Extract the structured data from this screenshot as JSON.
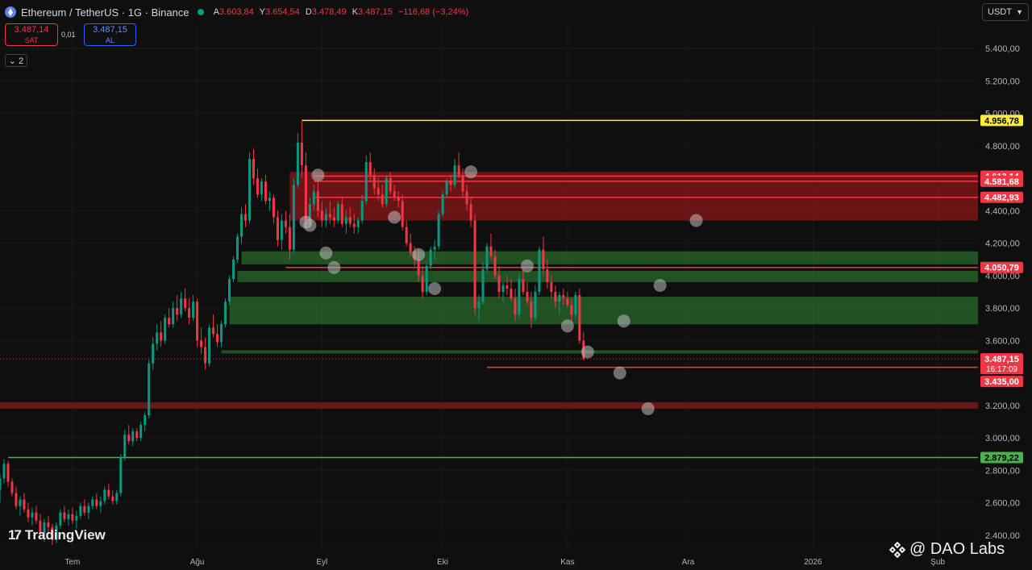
{
  "header": {
    "symbol": "Ethereum / TetherUS · 1G · Binance",
    "ohlc": [
      {
        "key": "A",
        "value": "3.603,84"
      },
      {
        "key": "Y",
        "value": "3.654,54"
      },
      {
        "key": "D",
        "value": "3.478,49"
      },
      {
        "key": "K",
        "value": "3.487,15"
      }
    ],
    "change": "−116,68 (−3,24%)"
  },
  "trade": {
    "sell_price": "3.487,14",
    "sell_label": "SAT",
    "spread": "0,01",
    "buy_price": "3.487,15",
    "buy_label": "AL"
  },
  "indicator_toggle": "2",
  "currency": "USDT",
  "branding": {
    "tradingview": "TradingView",
    "watermark": "@ DAO Labs"
  },
  "colors": {
    "bg": "#0f0f0f",
    "up": "#089981",
    "down": "#f23645",
    "yellow": "#ffeb3b",
    "green_line": "#4caf50",
    "red_zone": "#b71c1c",
    "green_zone": "#2e7d32"
  },
  "chart_data": {
    "type": "candlestick",
    "x_ticks": [
      {
        "label": "Tem",
        "t": 18
      },
      {
        "label": "Ağu",
        "t": 49
      },
      {
        "label": "Eyl",
        "t": 80
      },
      {
        "label": "Eki",
        "t": 110
      },
      {
        "label": "Kas",
        "t": 141
      },
      {
        "label": "Ara",
        "t": 171
      },
      {
        "label": "2026",
        "t": 202
      },
      {
        "label": "Şub",
        "t": 233
      }
    ],
    "y_ticks": [
      {
        "label": "2.400,00",
        "v": 2400
      },
      {
        "label": "2.600,00",
        "v": 2600
      },
      {
        "label": "2.800,00",
        "v": 2800
      },
      {
        "label": "3.000,00",
        "v": 3000
      },
      {
        "label": "3.200,00",
        "v": 3200
      },
      {
        "label": "3.600,00",
        "v": 3600
      },
      {
        "label": "3.800,00",
        "v": 3800
      },
      {
        "label": "4.000,00",
        "v": 4000
      },
      {
        "label": "4.200,00",
        "v": 4200
      },
      {
        "label": "4.400,00",
        "v": 4400
      },
      {
        "label": "4.800,00",
        "v": 4800
      },
      {
        "label": "5.000,00",
        "v": 5000
      },
      {
        "label": "5.200,00",
        "v": 5200
      },
      {
        "label": "5.400,00",
        "v": 5400
      }
    ],
    "ylim": [
      2300,
      5560
    ],
    "xlim": [
      0,
      243
    ],
    "price_levels": [
      {
        "label": "4.956,78",
        "value": 4956.78,
        "color": "#ffeb3b",
        "from_t": 75,
        "text_color": "#000000"
      },
      {
        "label": "4.613,14",
        "value": 4613.14,
        "color": "#f23645",
        "from_t": 78,
        "text_color": "#ffffff"
      },
      {
        "label": "4.581,68",
        "value": 4581.68,
        "color": "#f23645",
        "from_t": 78,
        "text_color": "#ffffff"
      },
      {
        "label": "4.482,93",
        "value": 4482.93,
        "color": "#f23645",
        "from_t": 78,
        "text_color": "#ffffff"
      },
      {
        "label": "4.050,79",
        "value": 4050.79,
        "color": "#f23645",
        "from_t": 71,
        "text_color": "#ffffff"
      },
      {
        "label": "3.435,00",
        "value": 3435.0,
        "color": "#f23645",
        "from_t": 121,
        "text_color": "#ffffff"
      },
      {
        "label": "2.879,22",
        "value": 2879.22,
        "color": "#4caf50",
        "from_t": 2,
        "text_color": "#000000"
      }
    ],
    "last_price": {
      "label": "3.487,15",
      "value": 3487.15,
      "countdown": "16:17:09"
    },
    "zones": [
      {
        "kind": "supply",
        "low": 4340,
        "high": 4640,
        "from_t": 72
      },
      {
        "kind": "support",
        "low": 4070,
        "high": 4150,
        "from_t": 60
      },
      {
        "kind": "support",
        "low": 3960,
        "high": 4030,
        "from_t": 59
      },
      {
        "kind": "support",
        "low": 3700,
        "high": 3870,
        "from_t": 57
      },
      {
        "kind": "support",
        "low": 3520,
        "high": 3540,
        "from_t": 55
      },
      {
        "kind": "supply",
        "low": 3180,
        "high": 3220,
        "from_t": 0
      }
    ],
    "markers": [
      {
        "t": 79,
        "v": 4620
      },
      {
        "t": 76,
        "v": 4330
      },
      {
        "t": 77,
        "v": 4310
      },
      {
        "t": 81,
        "v": 4140
      },
      {
        "t": 83,
        "v": 4050
      },
      {
        "t": 98,
        "v": 4360
      },
      {
        "t": 104,
        "v": 4130
      },
      {
        "t": 108,
        "v": 3920
      },
      {
        "t": 117,
        "v": 4640
      },
      {
        "t": 131,
        "v": 4060
      },
      {
        "t": 141,
        "v": 3690
      },
      {
        "t": 146,
        "v": 3530
      },
      {
        "t": 155,
        "v": 3720
      },
      {
        "t": 164,
        "v": 3940
      },
      {
        "t": 154,
        "v": 3400
      },
      {
        "t": 161,
        "v": 3180
      },
      {
        "t": 173,
        "v": 4340
      }
    ],
    "candles": [
      [
        0,
        2680,
        2780,
        2600,
        2750
      ],
      [
        1,
        2750,
        2870,
        2720,
        2840
      ],
      [
        2,
        2840,
        2860,
        2700,
        2730
      ],
      [
        3,
        2730,
        2750,
        2640,
        2660
      ],
      [
        4,
        2660,
        2700,
        2560,
        2580
      ],
      [
        5,
        2580,
        2640,
        2520,
        2620
      ],
      [
        6,
        2620,
        2660,
        2540,
        2560
      ],
      [
        7,
        2560,
        2600,
        2480,
        2510
      ],
      [
        8,
        2510,
        2570,
        2460,
        2540
      ],
      [
        9,
        2540,
        2580,
        2470,
        2490
      ],
      [
        10,
        2490,
        2530,
        2380,
        2410
      ],
      [
        11,
        2410,
        2500,
        2360,
        2480
      ],
      [
        12,
        2480,
        2520,
        2420,
        2450
      ],
      [
        13,
        2450,
        2470,
        2340,
        2370
      ],
      [
        14,
        2370,
        2480,
        2350,
        2460
      ],
      [
        15,
        2460,
        2560,
        2440,
        2540
      ],
      [
        16,
        2540,
        2580,
        2480,
        2500
      ],
      [
        17,
        2500,
        2560,
        2460,
        2530
      ],
      [
        18,
        2530,
        2570,
        2470,
        2490
      ],
      [
        19,
        2490,
        2550,
        2440,
        2520
      ],
      [
        20,
        2520,
        2600,
        2500,
        2580
      ],
      [
        21,
        2580,
        2620,
        2520,
        2540
      ],
      [
        22,
        2540,
        2600,
        2500,
        2580
      ],
      [
        23,
        2580,
        2640,
        2560,
        2620
      ],
      [
        24,
        2620,
        2660,
        2560,
        2580
      ],
      [
        25,
        2580,
        2640,
        2540,
        2610
      ],
      [
        26,
        2610,
        2700,
        2590,
        2680
      ],
      [
        27,
        2680,
        2720,
        2620,
        2640
      ],
      [
        28,
        2640,
        2680,
        2590,
        2610
      ],
      [
        29,
        2610,
        2680,
        2590,
        2660
      ],
      [
        30,
        2660,
        2900,
        2640,
        2880
      ],
      [
        31,
        2880,
        3050,
        2860,
        3020
      ],
      [
        32,
        3020,
        3080,
        2960,
        2980
      ],
      [
        33,
        2980,
        3060,
        2950,
        3040
      ],
      [
        34,
        3040,
        3060,
        2980,
        3000
      ],
      [
        35,
        3000,
        3100,
        2980,
        3080
      ],
      [
        36,
        3080,
        3160,
        3040,
        3140
      ],
      [
        37,
        3140,
        3480,
        3120,
        3460
      ],
      [
        38,
        3460,
        3620,
        3420,
        3580
      ],
      [
        39,
        3580,
        3700,
        3540,
        3650
      ],
      [
        40,
        3650,
        3720,
        3560,
        3600
      ],
      [
        41,
        3600,
        3760,
        3580,
        3740
      ],
      [
        42,
        3740,
        3800,
        3680,
        3700
      ],
      [
        43,
        3700,
        3840,
        3680,
        3800
      ],
      [
        44,
        3800,
        3880,
        3720,
        3760
      ],
      [
        45,
        3760,
        3900,
        3740,
        3860
      ],
      [
        46,
        3860,
        3920,
        3780,
        3800
      ],
      [
        47,
        3800,
        3860,
        3700,
        3740
      ],
      [
        48,
        3740,
        3880,
        3720,
        3840
      ],
      [
        49,
        3840,
        3860,
        3560,
        3600
      ],
      [
        50,
        3600,
        3680,
        3520,
        3560
      ],
      [
        51,
        3560,
        3620,
        3420,
        3460
      ],
      [
        52,
        3460,
        3700,
        3440,
        3680
      ],
      [
        53,
        3680,
        3760,
        3620,
        3640
      ],
      [
        54,
        3640,
        3700,
        3560,
        3590
      ],
      [
        55,
        3590,
        3720,
        3560,
        3700
      ],
      [
        56,
        3700,
        3860,
        3680,
        3840
      ],
      [
        57,
        3840,
        4000,
        3820,
        3980
      ],
      [
        58,
        3980,
        4120,
        3960,
        4100
      ],
      [
        59,
        4100,
        4260,
        4080,
        4240
      ],
      [
        60,
        4240,
        4420,
        4200,
        4380
      ],
      [
        61,
        4380,
        4440,
        4300,
        4340
      ],
      [
        62,
        4340,
        4760,
        4320,
        4720
      ],
      [
        63,
        4720,
        4780,
        4560,
        4600
      ],
      [
        64,
        4600,
        4660,
        4480,
        4500
      ],
      [
        65,
        4500,
        4600,
        4460,
        4580
      ],
      [
        66,
        4580,
        4620,
        4440,
        4460
      ],
      [
        67,
        4460,
        4520,
        4400,
        4480
      ],
      [
        68,
        4480,
        4500,
        4320,
        4360
      ],
      [
        69,
        4360,
        4400,
        4180,
        4220
      ],
      [
        70,
        4220,
        4380,
        4160,
        4340
      ],
      [
        71,
        4340,
        4400,
        4260,
        4300
      ],
      [
        72,
        4300,
        4380,
        4100,
        4160
      ],
      [
        73,
        4160,
        4600,
        4140,
        4560
      ],
      [
        74,
        4560,
        4880,
        4540,
        4820
      ],
      [
        75,
        4820,
        4950,
        4600,
        4680
      ],
      [
        76,
        4680,
        4760,
        4300,
        4340
      ],
      [
        77,
        4340,
        4480,
        4300,
        4440
      ],
      [
        78,
        4440,
        4560,
        4400,
        4520
      ],
      [
        79,
        4520,
        4580,
        4360,
        4400
      ],
      [
        80,
        4400,
        4460,
        4300,
        4340
      ],
      [
        81,
        4340,
        4420,
        4300,
        4380
      ],
      [
        82,
        4380,
        4460,
        4320,
        4360
      ],
      [
        83,
        4360,
        4420,
        4300,
        4340
      ],
      [
        84,
        4340,
        4460,
        4320,
        4440
      ],
      [
        85,
        4440,
        4480,
        4300,
        4320
      ],
      [
        86,
        4320,
        4400,
        4260,
        4360
      ],
      [
        87,
        4360,
        4420,
        4300,
        4320
      ],
      [
        88,
        4320,
        4380,
        4260,
        4300
      ],
      [
        89,
        4300,
        4360,
        4260,
        4340
      ],
      [
        90,
        4340,
        4500,
        4320,
        4460
      ],
      [
        91,
        4460,
        4740,
        4440,
        4700
      ],
      [
        92,
        4700,
        4760,
        4580,
        4620
      ],
      [
        93,
        4620,
        4660,
        4500,
        4540
      ],
      [
        94,
        4540,
        4600,
        4460,
        4500
      ],
      [
        95,
        4500,
        4560,
        4420,
        4440
      ],
      [
        96,
        4440,
        4620,
        4420,
        4600
      ],
      [
        97,
        4600,
        4640,
        4500,
        4520
      ],
      [
        98,
        4520,
        4560,
        4460,
        4480
      ],
      [
        99,
        4480,
        4520,
        4420,
        4460
      ],
      [
        100,
        4460,
        4500,
        4280,
        4300
      ],
      [
        101,
        4300,
        4340,
        4180,
        4200
      ],
      [
        102,
        4200,
        4260,
        4120,
        4140
      ],
      [
        103,
        4140,
        4180,
        4060,
        4100
      ],
      [
        104,
        4100,
        4160,
        3960,
        4000
      ],
      [
        105,
        4000,
        4060,
        3860,
        3900
      ],
      [
        106,
        3900,
        4080,
        3880,
        4060
      ],
      [
        107,
        4060,
        4180,
        4040,
        4160
      ],
      [
        108,
        4160,
        4220,
        4100,
        4180
      ],
      [
        109,
        4180,
        4400,
        4160,
        4380
      ],
      [
        110,
        4380,
        4520,
        4360,
        4500
      ],
      [
        111,
        4500,
        4600,
        4480,
        4580
      ],
      [
        112,
        4580,
        4620,
        4520,
        4560
      ],
      [
        113,
        4560,
        4720,
        4540,
        4680
      ],
      [
        114,
        4680,
        4760,
        4600,
        4620
      ],
      [
        115,
        4620,
        4660,
        4480,
        4520
      ],
      [
        116,
        4520,
        4560,
        4400,
        4440
      ],
      [
        117,
        4440,
        4480,
        4300,
        4340
      ],
      [
        118,
        4340,
        4380,
        3760,
        3800
      ],
      [
        119,
        3800,
        3880,
        3720,
        3840
      ],
      [
        120,
        3840,
        4080,
        3820,
        4040
      ],
      [
        121,
        4040,
        4200,
        4020,
        4180
      ],
      [
        122,
        4180,
        4260,
        4100,
        4120
      ],
      [
        123,
        4120,
        4160,
        3980,
        4000
      ],
      [
        124,
        4000,
        4060,
        3860,
        3900
      ],
      [
        125,
        3900,
        3960,
        3840,
        3940
      ],
      [
        126,
        3940,
        4000,
        3880,
        3920
      ],
      [
        127,
        3920,
        3980,
        3840,
        3860
      ],
      [
        128,
        3860,
        3920,
        3720,
        3760
      ],
      [
        129,
        3760,
        4020,
        3740,
        3980
      ],
      [
        130,
        3980,
        4040,
        3880,
        3900
      ],
      [
        131,
        3900,
        3960,
        3820,
        3840
      ],
      [
        132,
        3840,
        3900,
        3680,
        3740
      ],
      [
        133,
        3740,
        3940,
        3720,
        3900
      ],
      [
        134,
        3900,
        4180,
        3880,
        4160
      ],
      [
        135,
        4160,
        4240,
        4000,
        4040
      ],
      [
        136,
        4040,
        4100,
        3920,
        3960
      ],
      [
        137,
        3960,
        4000,
        3860,
        3900
      ],
      [
        138,
        3900,
        3940,
        3800,
        3840
      ],
      [
        139,
        3840,
        3900,
        3760,
        3880
      ],
      [
        140,
        3880,
        3920,
        3820,
        3860
      ],
      [
        141,
        3860,
        3900,
        3800,
        3820
      ],
      [
        142,
        3820,
        3860,
        3720,
        3760
      ],
      [
        143,
        3760,
        3900,
        3740,
        3880
      ],
      [
        144,
        3880,
        3920,
        3580,
        3600
      ],
      [
        145,
        3600,
        3654,
        3478,
        3487
      ]
    ]
  }
}
